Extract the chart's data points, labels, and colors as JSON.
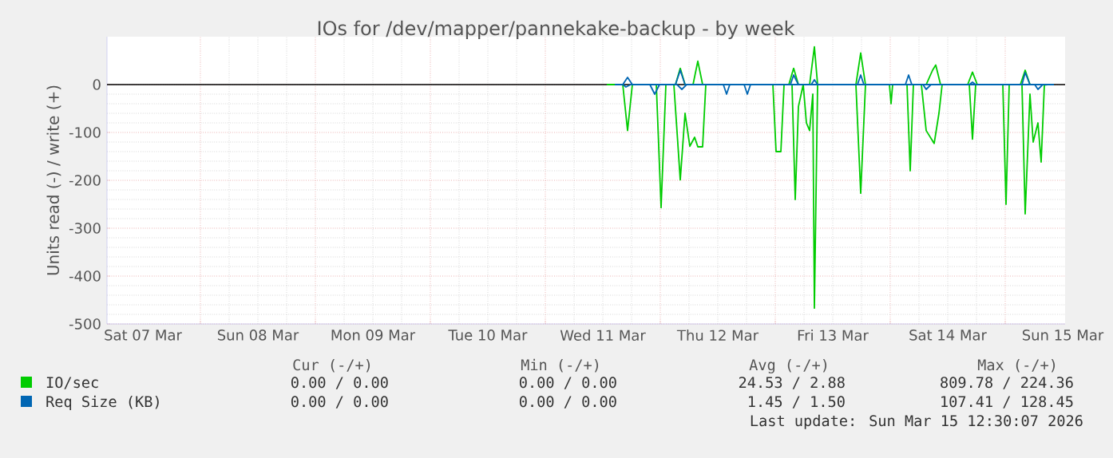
{
  "chart_data": {
    "type": "line",
    "title": "IOs for /dev/mapper/pannekake-backup - by week",
    "ylabel": "Units read (-) / write (+)",
    "xlim": [
      "2026-03-07T04:30",
      "2026-03-15T12:30"
    ],
    "xticks": [
      {
        "value": "2026-03-07T12:00",
        "label": "Sat 07 Mar"
      },
      {
        "value": "2026-03-08T00:00",
        "label": null
      },
      {
        "value": "2026-03-08T12:00",
        "label": "Sun 08 Mar"
      },
      {
        "value": "2026-03-09T00:00",
        "label": null
      },
      {
        "value": "2026-03-09T12:00",
        "label": "Mon 09 Mar"
      },
      {
        "value": "2026-03-10T00:00",
        "label": null
      },
      {
        "value": "2026-03-10T12:00",
        "label": "Tue 10 Mar"
      },
      {
        "value": "2026-03-11T00:00",
        "label": null
      },
      {
        "value": "2026-03-11T12:00",
        "label": "Wed 11 Mar"
      },
      {
        "value": "2026-03-12T00:00",
        "label": null
      },
      {
        "value": "2026-03-12T12:00",
        "label": "Thu 12 Mar"
      },
      {
        "value": "2026-03-13T00:00",
        "label": null
      },
      {
        "value": "2026-03-13T12:00",
        "label": "Fri 13 Mar"
      },
      {
        "value": "2026-03-14T00:00",
        "label": null
      },
      {
        "value": "2026-03-14T12:00",
        "label": "Sat 14 Mar"
      },
      {
        "value": "2026-03-15T00:00",
        "label": null
      },
      {
        "value": "2026-03-15T12:00",
        "label": "Sun 15 Mar"
      }
    ],
    "ylim": [
      -500,
      100
    ],
    "yticks": [
      -500,
      -400,
      -300,
      -200,
      -100,
      0
    ],
    "grid": true,
    "legend": "bottom",
    "marker": "none",
    "line_style": "solid",
    "ref_lines": [
      {
        "axis": "y",
        "value": 0,
        "color": "#000000"
      }
    ],
    "series": [
      {
        "name": "IO/sec",
        "color": "#00cc00",
        "x": [
          "2026-03-11T12:50",
          "2026-03-11T16:10",
          "2026-03-11T17:10",
          "2026-03-11T18:10",
          "2026-03-11T23:10",
          "2026-03-12T00:10",
          "2026-03-12T01:10",
          "2026-03-12T02:50",
          "2026-03-12T04:10",
          "2026-03-12T05:10",
          "2026-03-12T06:10",
          "2026-03-12T07:10",
          "2026-03-12T07:50",
          "2026-03-12T08:50",
          "2026-03-12T09:30",
          "2026-03-12T23:30",
          "2026-03-13T00:10",
          "2026-03-13T01:10",
          "2026-03-13T01:50",
          "2026-03-13T03:30",
          "2026-03-13T04:10",
          "2026-03-13T04:50",
          "2026-03-13T05:50",
          "2026-03-13T06:30",
          "2026-03-13T07:10",
          "2026-03-13T07:50",
          "2026-03-13T08:10",
          "2026-03-13T08:50",
          "2026-03-13T16:50",
          "2026-03-13T17:50",
          "2026-03-13T18:50",
          "2026-03-13T23:50",
          "2026-03-14T00:10",
          "2026-03-14T00:30",
          "2026-03-14T03:30",
          "2026-03-14T04:10",
          "2026-03-14T04:50",
          "2026-03-14T06:30",
          "2026-03-14T07:30",
          "2026-03-14T09:10",
          "2026-03-14T10:10",
          "2026-03-14T10:50",
          "2026-03-14T16:30",
          "2026-03-14T17:10",
          "2026-03-14T17:50",
          "2026-03-14T23:30",
          "2026-03-15T00:10",
          "2026-03-15T00:50",
          "2026-03-15T03:30",
          "2026-03-15T04:10",
          "2026-03-15T05:10",
          "2026-03-15T05:50",
          "2026-03-15T06:50",
          "2026-03-15T07:30",
          "2026-03-15T08:10",
          "2026-03-15T08:50"
        ],
        "values": [
          0,
          0,
          -96,
          0,
          0,
          -257,
          0,
          0,
          -199,
          -60,
          -129,
          -110,
          -130,
          -130,
          0,
          0,
          -140,
          -140,
          0,
          0,
          -240,
          -46,
          0,
          -80,
          -96,
          -20,
          -467,
          0,
          0,
          -227,
          0,
          0,
          -40,
          0,
          0,
          -180,
          0,
          0,
          -96,
          -123,
          -60,
          0,
          0,
          -114,
          0,
          0,
          -250,
          0,
          0,
          -270,
          -20,
          -120,
          -80,
          -162,
          -1,
          0
        ]
      },
      {
        "color": "#00cc00",
        "x": [
          "2026-03-12T02:10",
          "2026-03-12T03:10",
          "2026-03-12T04:10",
          "2026-03-12T05:10",
          "2026-03-12T06:50",
          "2026-03-12T07:50",
          "2026-03-12T08:50",
          "2026-03-13T02:50",
          "2026-03-13T03:50",
          "2026-03-13T04:50",
          "2026-03-13T07:10",
          "2026-03-13T08:10",
          "2026-03-13T08:50",
          "2026-03-13T16:50",
          "2026-03-13T17:50",
          "2026-03-13T18:50",
          "2026-03-14T07:30",
          "2026-03-14T08:50",
          "2026-03-14T09:30",
          "2026-03-14T10:30",
          "2026-03-14T16:10",
          "2026-03-14T17:10",
          "2026-03-14T18:10",
          "2026-03-15T03:10",
          "2026-03-15T04:10",
          "2026-03-15T05:10"
        ],
        "values": [
          0,
          0,
          34,
          0,
          0,
          49,
          0,
          0,
          34,
          0,
          0,
          79,
          0,
          0,
          66,
          0,
          0,
          30,
          41,
          0,
          0,
          26,
          0,
          0,
          30,
          0
        ]
      },
      {
        "name": "Req Size (KB)",
        "color": "#0066b3",
        "x": [
          "2026-03-11T14:30",
          "2026-03-11T16:10",
          "2026-03-11T16:50",
          "2026-03-11T17:50",
          "2026-03-11T21:50",
          "2026-03-11T22:50",
          "2026-03-11T23:50",
          "2026-03-12T03:30",
          "2026-03-12T04:30",
          "2026-03-12T05:30",
          "2026-03-12T13:10",
          "2026-03-12T13:50",
          "2026-03-12T14:30",
          "2026-03-12T17:30",
          "2026-03-12T18:10",
          "2026-03-12T18:50",
          "2026-03-14T06:50",
          "2026-03-14T07:30",
          "2026-03-14T08:30",
          "2026-03-15T06:10",
          "2026-03-15T06:50",
          "2026-03-15T07:50"
        ],
        "values": [
          0,
          0,
          -5,
          0,
          0,
          -20,
          0,
          0,
          -10,
          0,
          0,
          -20,
          0,
          0,
          -20,
          0,
          0,
          -10,
          0,
          0,
          -10,
          0
        ]
      },
      {
        "color": "#0066b3",
        "x": [
          "2026-03-11T16:10",
          "2026-03-11T17:10",
          "2026-03-11T18:10",
          "2026-03-12T03:10",
          "2026-03-12T04:10",
          "2026-03-12T05:10",
          "2026-03-13T03:10",
          "2026-03-13T03:50",
          "2026-03-13T04:50",
          "2026-03-13T07:30",
          "2026-03-13T08:10",
          "2026-03-13T08:50",
          "2026-03-13T17:10",
          "2026-03-13T17:50",
          "2026-03-13T18:30",
          "2026-03-14T03:10",
          "2026-03-14T03:50",
          "2026-03-14T04:30",
          "2026-03-14T16:30",
          "2026-03-14T17:10",
          "2026-03-14T17:50",
          "2026-03-15T03:30",
          "2026-03-15T04:10",
          "2026-03-15T05:10",
          "2026-03-15T10:10"
        ],
        "values": [
          0,
          15,
          0,
          0,
          30,
          0,
          0,
          20,
          0,
          0,
          10,
          0,
          0,
          20,
          0,
          0,
          20,
          0,
          0,
          5,
          0,
          0,
          25,
          0,
          0
        ]
      }
    ],
    "annotations": [
      "Cur (-/+)",
      "Min (-/+)",
      "Avg (-/+)",
      "Max (-/+)",
      "0.00 / 0.00",
      "0.00 / 0.00",
      "24.53 / 2.88",
      "809.78 / 224.36",
      "0.00 / 0.00",
      "0.00 / 0.00",
      "1.45 / 1.50",
      "107.41 / 128.45",
      "Last update: Sun Mar 15 12:30:07 2026"
    ]
  }
}
